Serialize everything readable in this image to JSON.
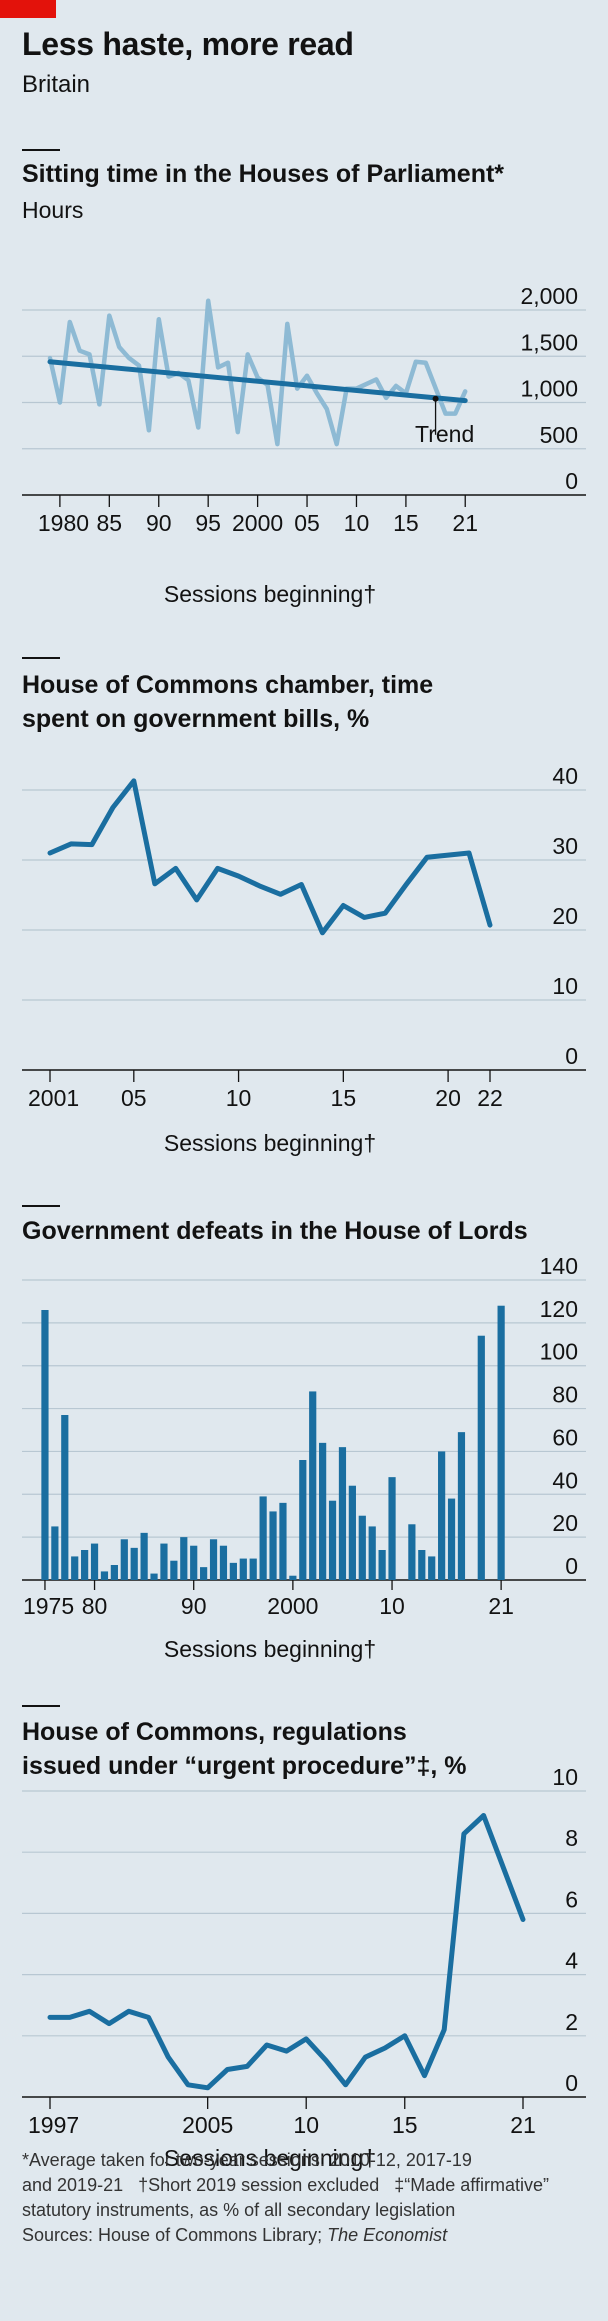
{
  "page": {
    "title": "Less haste, more read",
    "subtitle": "Britain"
  },
  "footnotes": {
    "line1": "*Average taken for two-year sessions: 2010-12, 2017-19",
    "line2": "and 2019-21   †Short 2019 session excluded   ‡“Made affirmative”",
    "line3": "statutory instruments, as % of all secondary legislation",
    "sources_prefix": "Sources: House of Commons Library; ",
    "sources_italic": "The Economist"
  },
  "colors": {
    "background": "#e0e8ee",
    "grid": "#b8c7d2",
    "dark_blue": "#1a6ea0",
    "light_blue": "#8ebad4",
    "red_tab": "#e3120b"
  },
  "chart_data": [
    {
      "id": "sitting-time",
      "type": "line",
      "title": "Sitting time in the Houses of Parliament*",
      "unit": "Hours",
      "xlabel": "Sessions beginning†",
      "xlim": [
        1979,
        2023
      ],
      "ylim": [
        0,
        2000
      ],
      "yticks": [
        0,
        500,
        1000,
        1500,
        2000
      ],
      "ytick_labels": [
        "0",
        "500",
        "1,000",
        "1,500",
        "2,000"
      ],
      "xticks": [
        1980,
        1985,
        1990,
        1995,
        2000,
        2005,
        2010,
        2015,
        2021
      ],
      "xtick_labels": [
        "1980",
        "85",
        "90",
        "95",
        "2000",
        "05",
        "10",
        "15",
        "21"
      ],
      "series": [
        {
          "role": "actual",
          "x": [
            1979,
            1980,
            1981,
            1982,
            1983,
            1984,
            1985,
            1986,
            1987,
            1988,
            1989,
            1990,
            1991,
            1992,
            1993,
            1994,
            1995,
            1996,
            1997,
            1998,
            1999,
            2000,
            2001,
            2002,
            2003,
            2004,
            2005,
            2006,
            2007,
            2008,
            2009,
            2010,
            2012,
            2013,
            2014,
            2015,
            2016,
            2017,
            2019,
            2020,
            2021
          ],
          "y": [
            1480,
            1000,
            1870,
            1560,
            1520,
            980,
            1940,
            1600,
            1480,
            1400,
            700,
            1900,
            1280,
            1320,
            1240,
            730,
            2100,
            1380,
            1430,
            680,
            1520,
            1270,
            1190,
            550,
            1850,
            1150,
            1290,
            1100,
            930,
            550,
            1150,
            1150,
            1250,
            1050,
            1180,
            1100,
            1440,
            1430,
            880,
            880,
            1120
          ]
        },
        {
          "name": "Trend",
          "x": [
            1979,
            2021
          ],
          "y": [
            1440,
            1020
          ]
        }
      ],
      "annotation": {
        "text": "Trend",
        "x": 2018,
        "y": 1040
      }
    },
    {
      "id": "govt-bills",
      "type": "line",
      "title_lines": [
        "House of Commons chamber, time",
        "spent on government bills, %"
      ],
      "xlabel": "Sessions beginning†",
      "xlim": [
        2001,
        2022
      ],
      "ylim": [
        0,
        40
      ],
      "yticks": [
        0,
        10,
        20,
        30,
        40
      ],
      "ytick_labels": [
        "0",
        "10",
        "20",
        "30",
        "40"
      ],
      "xticks": [
        2001,
        2005,
        2010,
        2015,
        2020,
        2022
      ],
      "xtick_labels": [
        "2001",
        "05",
        "10",
        "15",
        "20",
        "22"
      ],
      "series": [
        {
          "x": [
            2001,
            2002,
            2003,
            2004,
            2005,
            2006,
            2007,
            2008,
            2009,
            2010,
            2011,
            2012,
            2013,
            2014,
            2015,
            2016,
            2017,
            2018,
            2019,
            2021,
            2022
          ],
          "y": [
            31.0,
            32.3,
            32.2,
            37.5,
            41.3,
            26.6,
            28.8,
            24.3,
            28.8,
            27.7,
            26.3,
            25.1,
            26.5,
            19.6,
            23.5,
            21.8,
            22.4,
            26.5,
            30.4,
            31.0,
            20.7
          ]
        }
      ]
    },
    {
      "id": "lords-defeats",
      "type": "bar",
      "title": "Government defeats in the House of Lords",
      "xlabel": "Sessions beginning†",
      "xlim": [
        1974.5,
        2022.5
      ],
      "ylim": [
        0,
        140
      ],
      "yticks": [
        0,
        20,
        40,
        60,
        80,
        100,
        120,
        140
      ],
      "ytick_labels": [
        "0",
        "20",
        "40",
        "60",
        "80",
        "100",
        "120",
        "140"
      ],
      "xticks": [
        1975,
        1980,
        1990,
        2000,
        2010,
        2021
      ],
      "xtick_labels": [
        "1975",
        "80",
        "90",
        "2000",
        "10",
        "21"
      ],
      "x": [
        1975,
        1976,
        1977,
        1978,
        1979,
        1980,
        1981,
        1982,
        1983,
        1984,
        1985,
        1986,
        1987,
        1988,
        1989,
        1990,
        1991,
        1992,
        1993,
        1994,
        1995,
        1996,
        1997,
        1998,
        1999,
        2000,
        2001,
        2002,
        2003,
        2004,
        2005,
        2006,
        2007,
        2008,
        2009,
        2010,
        2012,
        2013,
        2014,
        2015,
        2016,
        2017,
        2019,
        2021
      ],
      "values": [
        126,
        25,
        77,
        11,
        14,
        17,
        4,
        7,
        19,
        15,
        22,
        3,
        17,
        9,
        20,
        16,
        6,
        19,
        16,
        8,
        10,
        10,
        39,
        32,
        36,
        2,
        56,
        88,
        64,
        37,
        62,
        44,
        30,
        25,
        14,
        48,
        26,
        14,
        11,
        60,
        38,
        69,
        114,
        128
      ]
    },
    {
      "id": "urgent-procedure",
      "type": "line",
      "title_lines": [
        "House of Commons, regulations",
        "issued under “urgent procedure”‡, %"
      ],
      "xlabel": "Sessions beginning†",
      "xlim": [
        1997,
        2021
      ],
      "ylim": [
        0,
        10
      ],
      "yticks": [
        0,
        2,
        4,
        6,
        8,
        10
      ],
      "ytick_labels": [
        "0",
        "2",
        "4",
        "6",
        "8",
        "10"
      ],
      "xticks": [
        1997,
        2005,
        2010,
        2015,
        2021
      ],
      "xtick_labels": [
        "1997",
        "2005",
        "10",
        "15",
        "21"
      ],
      "series": [
        {
          "x": [
            1997,
            1998,
            1999,
            2000,
            2001,
            2002,
            2003,
            2004,
            2005,
            2006,
            2007,
            2008,
            2009,
            2010,
            2011,
            2012,
            2013,
            2014,
            2015,
            2016,
            2017,
            2018,
            2019,
            2021
          ],
          "y": [
            2.6,
            2.6,
            2.8,
            2.4,
            2.8,
            2.6,
            1.3,
            0.4,
            0.3,
            0.9,
            1.0,
            1.7,
            1.5,
            1.9,
            1.2,
            0.4,
            1.3,
            1.6,
            2.0,
            0.7,
            2.2,
            8.6,
            9.2,
            5.8
          ]
        }
      ]
    }
  ]
}
